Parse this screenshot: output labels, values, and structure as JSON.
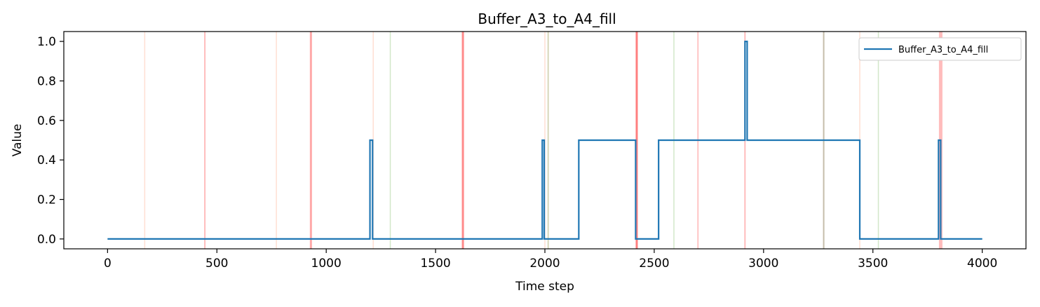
{
  "chart_data": {
    "type": "line",
    "title": "Buffer_A3_to_A4_fill",
    "xlabel": "Time step",
    "ylabel": "Value",
    "xlim": [
      -200,
      4200
    ],
    "ylim": [
      -0.05,
      1.05
    ],
    "xticks": [
      0,
      500,
      1000,
      1500,
      2000,
      2500,
      3000,
      3500,
      4000
    ],
    "yticks": [
      0.0,
      0.2,
      0.4,
      0.6,
      0.8,
      1.0
    ],
    "xtick_labels": [
      "0",
      "500",
      "1000",
      "1500",
      "2000",
      "2500",
      "3000",
      "3500",
      "4000"
    ],
    "ytick_labels": [
      "0.0",
      "0.2",
      "0.4",
      "0.6",
      "0.8",
      "1.0"
    ],
    "legend": {
      "placement": "top-right",
      "entries": [
        "Buffer_A3_to_A4_fill"
      ]
    },
    "series": [
      {
        "name": "Buffer_A3_to_A4_fill",
        "color": "#1f77b4",
        "x": [
          0,
          1200,
          1200,
          1212,
          1212,
          1988,
          1988,
          1997,
          1997,
          2155,
          2155,
          2415,
          2415,
          2520,
          2520,
          2915,
          2915,
          2925,
          2925,
          3440,
          3440,
          3800,
          3800,
          3810,
          3810,
          4000
        ],
        "y": [
          0.0,
          0.0,
          0.5,
          0.5,
          0.0,
          0.0,
          0.5,
          0.5,
          0.0,
          0.0,
          0.5,
          0.5,
          0.0,
          0.0,
          0.5,
          0.5,
          1.0,
          1.0,
          0.5,
          0.5,
          0.0,
          0.0,
          0.5,
          0.5,
          0.0,
          0.0
        ]
      }
    ],
    "vertical_markers": [
      {
        "x": 170,
        "color": "#ff7f50",
        "opacity": 0.25,
        "width": 1.5
      },
      {
        "x": 445,
        "color": "#ff4040",
        "opacity": 0.35,
        "width": 2
      },
      {
        "x": 772,
        "color": "#ff7f50",
        "opacity": 0.25,
        "width": 1.5
      },
      {
        "x": 930,
        "color": "#ff4040",
        "opacity": 0.45,
        "width": 3
      },
      {
        "x": 1215,
        "color": "#ff7f50",
        "opacity": 0.25,
        "width": 1.5
      },
      {
        "x": 1293,
        "color": "#6ab04c",
        "opacity": 0.3,
        "width": 1.5
      },
      {
        "x": 1625,
        "color": "#ff2a2a",
        "opacity": 0.55,
        "width": 3
      },
      {
        "x": 2000,
        "color": "#ff7f50",
        "opacity": 0.25,
        "width": 1.5
      },
      {
        "x": 2015,
        "color": "#8b8b3a",
        "opacity": 0.35,
        "width": 2
      },
      {
        "x": 2420,
        "color": "#ff2a2a",
        "opacity": 0.6,
        "width": 3
      },
      {
        "x": 2590,
        "color": "#6ab04c",
        "opacity": 0.3,
        "width": 1.5
      },
      {
        "x": 2700,
        "color": "#ff4040",
        "opacity": 0.3,
        "width": 2
      },
      {
        "x": 2915,
        "color": "#ff4040",
        "opacity": 0.35,
        "width": 2
      },
      {
        "x": 3275,
        "color": "#6b5a2a",
        "opacity": 0.4,
        "width": 2
      },
      {
        "x": 3440,
        "color": "#ff7f50",
        "opacity": 0.25,
        "width": 1.5
      },
      {
        "x": 3525,
        "color": "#6ab04c",
        "opacity": 0.3,
        "width": 1.5
      },
      {
        "x": 3810,
        "color": "#ff4040",
        "opacity": 0.35,
        "width": 5
      }
    ],
    "grid": false
  }
}
